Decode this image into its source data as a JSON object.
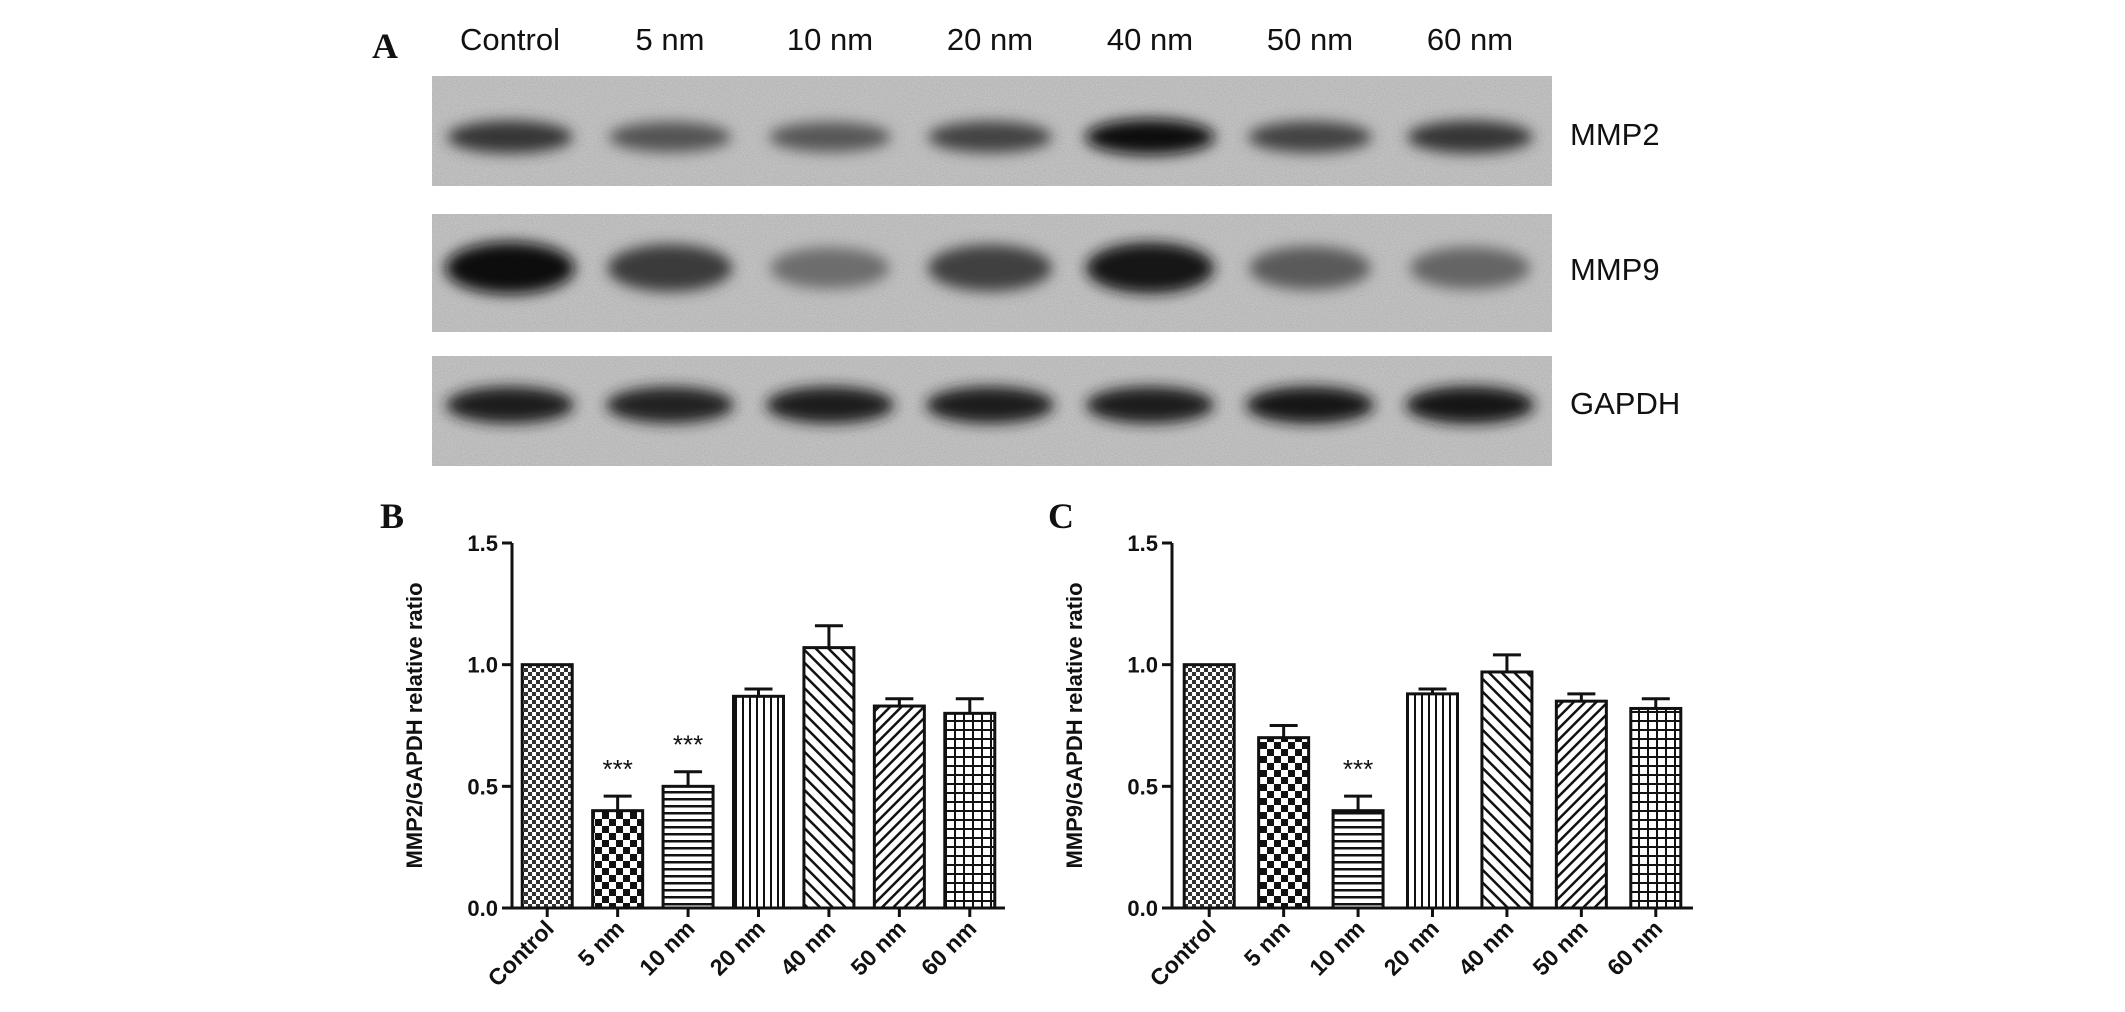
{
  "blot": {
    "panel_letter": "A",
    "lanes": [
      "Control",
      "5 nm",
      "10 nm",
      "20 nm",
      "40 nm",
      "50 nm",
      "60 nm"
    ],
    "bands": [
      {
        "label": "MMP2",
        "intensity": [
          0.78,
          0.62,
          0.6,
          0.7,
          0.98,
          0.7,
          0.78
        ]
      },
      {
        "label": "MMP9",
        "intensity": [
          0.98,
          0.75,
          0.48,
          0.72,
          0.92,
          0.58,
          0.52
        ]
      },
      {
        "label": "GAPDH",
        "intensity": [
          0.9,
          0.88,
          0.9,
          0.9,
          0.9,
          0.92,
          0.95
        ]
      }
    ]
  },
  "chart_data": [
    {
      "type": "bar",
      "panel_letter": "B",
      "categories": [
        "Control",
        "5 nm",
        "10 nm",
        "20 nm",
        "40 nm",
        "50 nm",
        "60 nm"
      ],
      "values": [
        1.0,
        0.4,
        0.5,
        0.87,
        1.07,
        0.83,
        0.8
      ],
      "errors": [
        0.0,
        0.06,
        0.06,
        0.03,
        0.09,
        0.03,
        0.06
      ],
      "significance": [
        "",
        "***",
        "***",
        "",
        "",
        "",
        ""
      ],
      "patterns": [
        "fine-check",
        "checkerboard",
        "horizontal-lines",
        "vertical-lines",
        "diagonal-up",
        "diagonal-down",
        "grid"
      ],
      "ylabel": "MMP2/GAPDH relative ratio",
      "xlabel": "",
      "ylim": [
        0,
        1.5
      ],
      "yticks": [
        "0.0",
        "0.5",
        "1.0",
        "1.5"
      ]
    },
    {
      "type": "bar",
      "panel_letter": "C",
      "categories": [
        "Control",
        "5 nm",
        "10 nm",
        "20 nm",
        "40 nm",
        "50 nm",
        "60 nm"
      ],
      "values": [
        1.0,
        0.7,
        0.4,
        0.88,
        0.97,
        0.85,
        0.82
      ],
      "errors": [
        0.0,
        0.05,
        0.06,
        0.02,
        0.07,
        0.03,
        0.04
      ],
      "significance": [
        "",
        "",
        "***",
        "",
        "",
        "",
        ""
      ],
      "patterns": [
        "fine-check",
        "checkerboard",
        "horizontal-lines",
        "vertical-lines",
        "diagonal-up",
        "diagonal-down",
        "grid"
      ],
      "ylabel": "MMP9/GAPDH relative ratio",
      "xlabel": "",
      "ylim": [
        0,
        1.5
      ],
      "yticks": [
        "0.0",
        "0.5",
        "1.0",
        "1.5"
      ]
    }
  ]
}
